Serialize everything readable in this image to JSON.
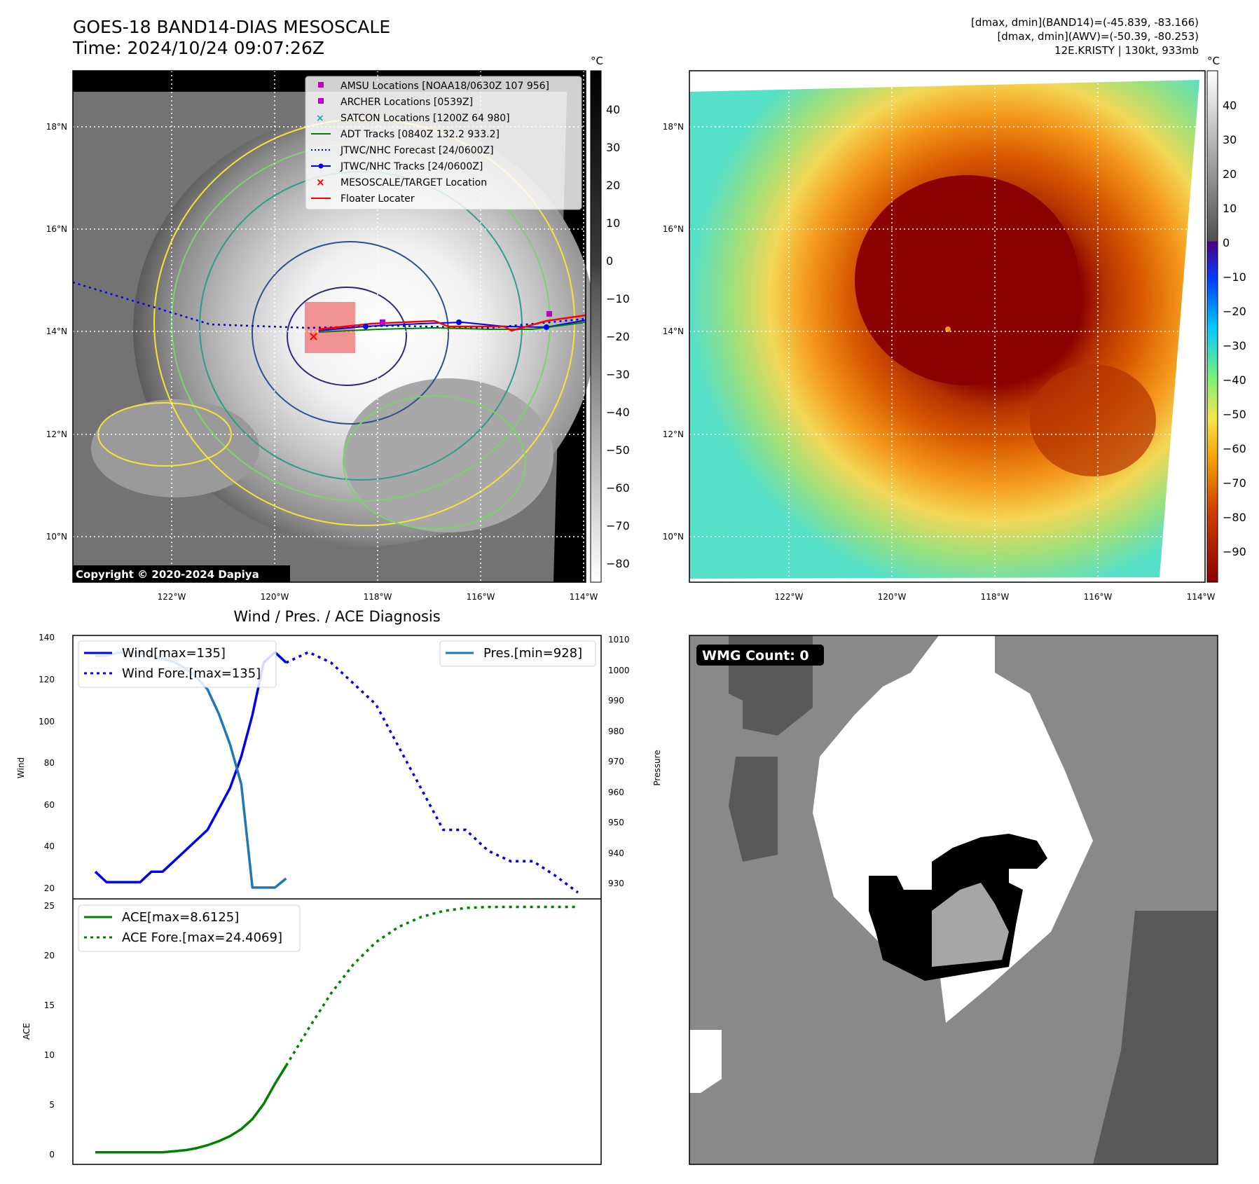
{
  "header": {
    "title": "GOES-18 BAND14-DIAS MESOSCALE",
    "time": "Time: 2024/10/24 09:07:26Z",
    "stats": [
      "[dmax, dmin](BAND14)=(-45.839, -83.166)",
      "[dmax, dmin](AWV)=(-50.39, -80.253)",
      "12E.KRISTY | 130kt, 933mb"
    ]
  },
  "map_ir": {
    "lat_labels": [
      "18°N",
      "16°N",
      "14°N",
      "12°N",
      "10°N"
    ],
    "lon_labels": [
      "122°W",
      "120°W",
      "118°W",
      "116°W",
      "114°W"
    ],
    "copyright": "Copyright © 2020-2024 Dapiya",
    "colorbar_unit": "°C",
    "colorbar_ticks": [
      "40",
      "30",
      "20",
      "10",
      "0",
      "−10",
      "−20",
      "−30",
      "−40",
      "−50",
      "−60",
      "−70",
      "−80"
    ],
    "legend": [
      {
        "label": "AMSU Locations [NOAA18/0630Z 107 956]",
        "color": "#c000c0"
      },
      {
        "label": "ARCHER Locations [0539Z]",
        "color": "#c000c0"
      },
      {
        "label": "SATCON Locations [1200Z 64 980]",
        "color": "#00b0b0"
      },
      {
        "label": "ADT Tracks [0840Z 132.2 933.2]",
        "color": "#008000"
      },
      {
        "label": "JTWC/NHC Forecast [24/0600Z]",
        "color": "#0000ee"
      },
      {
        "label": "JTWC/NHC Tracks [24/0600Z]",
        "color": "#0000ee"
      },
      {
        "label": "MESOSCALE/TARGET Location",
        "color": "#ff0000"
      },
      {
        "label": "Floater Locater",
        "color": "#ff0000"
      }
    ]
  },
  "map_color": {
    "lat_labels": [
      "18°N",
      "16°N",
      "14°N",
      "12°N",
      "10°N"
    ],
    "lon_labels": [
      "122°W",
      "120°W",
      "118°W",
      "116°W",
      "114°W"
    ],
    "colorbar_unit": "°C",
    "colorbar_ticks": [
      "40",
      "30",
      "20",
      "10",
      "0",
      "−10",
      "−20",
      "−30",
      "−40",
      "−50",
      "−60",
      "−70",
      "−80",
      "−90"
    ]
  },
  "diagnosis": {
    "title": "Wind / Pres. / ACE Diagnosis",
    "wind_ylabel": "Wind",
    "pres_ylabel": "Pressure",
    "ace_ylabel": "ACE",
    "wind_ticks": [
      "140",
      "120",
      "100",
      "80",
      "60",
      "40",
      "20"
    ],
    "pres_ticks": [
      "1010",
      "1000",
      "990",
      "980",
      "970",
      "960",
      "950",
      "940",
      "930"
    ],
    "ace_ticks": [
      "25",
      "20",
      "15",
      "10",
      "5",
      "0"
    ],
    "legend_wind": "Wind[max=135]",
    "legend_wind_fore": "Wind Fore.[max=135]",
    "legend_pres": "Pres.[min=928]",
    "legend_ace": "ACE[max=8.6125]",
    "legend_ace_fore": "ACE Fore.[max=24.4069]"
  },
  "wmg": {
    "label": "WMG Count: 0"
  },
  "chart_data": [
    {
      "type": "line",
      "title": "Wind / Pres. / ACE Diagnosis",
      "ylabel": "Wind",
      "ylabel_right": "Pressure",
      "ylim": [
        18,
        142
      ],
      "ylim_right": [
        925,
        1010
      ],
      "series": [
        {
          "name": "Wind[max=135]",
          "axis": "left",
          "color": "#0000ee",
          "style": "solid",
          "x": [
            0,
            1,
            2,
            3,
            4,
            5,
            6,
            7,
            8,
            9,
            10,
            11,
            12,
            13,
            14,
            15,
            16,
            17
          ],
          "y": [
            30,
            25,
            25,
            25,
            25,
            30,
            30,
            35,
            40,
            45,
            50,
            60,
            70,
            85,
            105,
            130,
            135,
            130
          ]
        },
        {
          "name": "Wind Fore.[max=135]",
          "axis": "left",
          "color": "#0000ee",
          "style": "dotted",
          "x": [
            17,
            19,
            21,
            23,
            25,
            27,
            29,
            31,
            33,
            35,
            37,
            39,
            41,
            43
          ],
          "y": [
            130,
            135,
            130,
            120,
            110,
            90,
            70,
            50,
            50,
            40,
            35,
            35,
            28,
            20
          ]
        },
        {
          "name": "Pres.[min=928]",
          "axis": "right",
          "color": "#1f77b4",
          "style": "solid",
          "x": [
            0,
            1,
            2,
            3,
            4,
            5,
            6,
            7,
            8,
            9,
            10,
            11,
            12,
            13,
            14,
            15,
            16,
            17
          ],
          "y": [
            1004,
            1004,
            1005,
            1005,
            1005,
            1004,
            1003,
            1002,
            1000,
            997,
            993,
            985,
            975,
            962,
            928,
            928,
            928,
            931
          ]
        }
      ]
    },
    {
      "type": "line",
      "ylabel": "ACE",
      "ylim": [
        -1,
        25
      ],
      "series": [
        {
          "name": "ACE[max=8.6125]",
          "color": "#008000",
          "style": "solid",
          "x": [
            0,
            1,
            2,
            3,
            4,
            5,
            6,
            7,
            8,
            9,
            10,
            11,
            12,
            13,
            14,
            15,
            16,
            17
          ],
          "y": [
            0,
            0,
            0,
            0,
            0,
            0,
            0,
            0.1,
            0.2,
            0.4,
            0.7,
            1.1,
            1.6,
            2.3,
            3.3,
            4.8,
            6.8,
            8.6125
          ]
        },
        {
          "name": "ACE Fore.[max=24.4069]",
          "color": "#008000",
          "style": "dotted",
          "x": [
            17,
            19,
            21,
            23,
            25,
            27,
            29,
            31,
            33,
            35,
            37,
            39,
            41,
            43
          ],
          "y": [
            8.6125,
            12.3,
            15.8,
            18.7,
            20.9,
            22.4,
            23.4,
            24.0,
            24.3,
            24.4,
            24.4069,
            24.4069,
            24.4069,
            24.4069
          ]
        }
      ]
    }
  ]
}
